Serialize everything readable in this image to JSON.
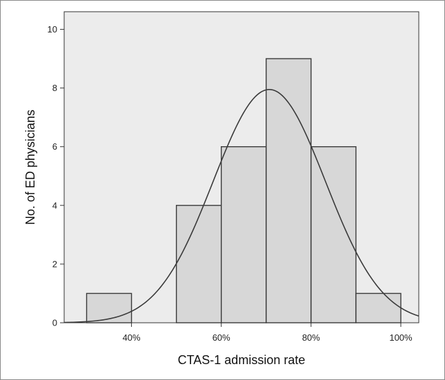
{
  "chart_data": {
    "type": "bar",
    "subtype": "histogram",
    "xlabel": "CTAS-1 admission rate",
    "ylabel": "No. of ED physicians",
    "bins": [
      {
        "start": 30,
        "end": 40,
        "count": 1
      },
      {
        "start": 40,
        "end": 50,
        "count": 0
      },
      {
        "start": 50,
        "end": 60,
        "count": 4
      },
      {
        "start": 60,
        "end": 70,
        "count": 6
      },
      {
        "start": 70,
        "end": 80,
        "count": 9
      },
      {
        "start": 80,
        "end": 90,
        "count": 6
      },
      {
        "start": 90,
        "end": 100,
        "count": 1
      }
    ],
    "xlim": [
      25,
      104
    ],
    "ylim": [
      0,
      10.6
    ],
    "x_ticks": [
      {
        "value": 40,
        "label": "40%"
      },
      {
        "value": 60,
        "label": "60%"
      },
      {
        "value": 80,
        "label": "80%"
      },
      {
        "value": 100,
        "label": "100%"
      }
    ],
    "y_ticks": [
      {
        "value": 0,
        "label": "0"
      },
      {
        "value": 2,
        "label": "2"
      },
      {
        "value": 4,
        "label": "4"
      },
      {
        "value": 6,
        "label": "6"
      },
      {
        "value": 8,
        "label": "8"
      },
      {
        "value": 10,
        "label": "10"
      }
    ],
    "normal_curve": {
      "mean": 70.7,
      "sd": 12.5,
      "peak": 7.95
    },
    "grid": false,
    "colors": {
      "plot_background": "#ececec",
      "bar_fill": "#d7d7d7",
      "bar_stroke": "#3a3a3a",
      "curve": "#3a3a3a",
      "axis": "#333333"
    }
  }
}
